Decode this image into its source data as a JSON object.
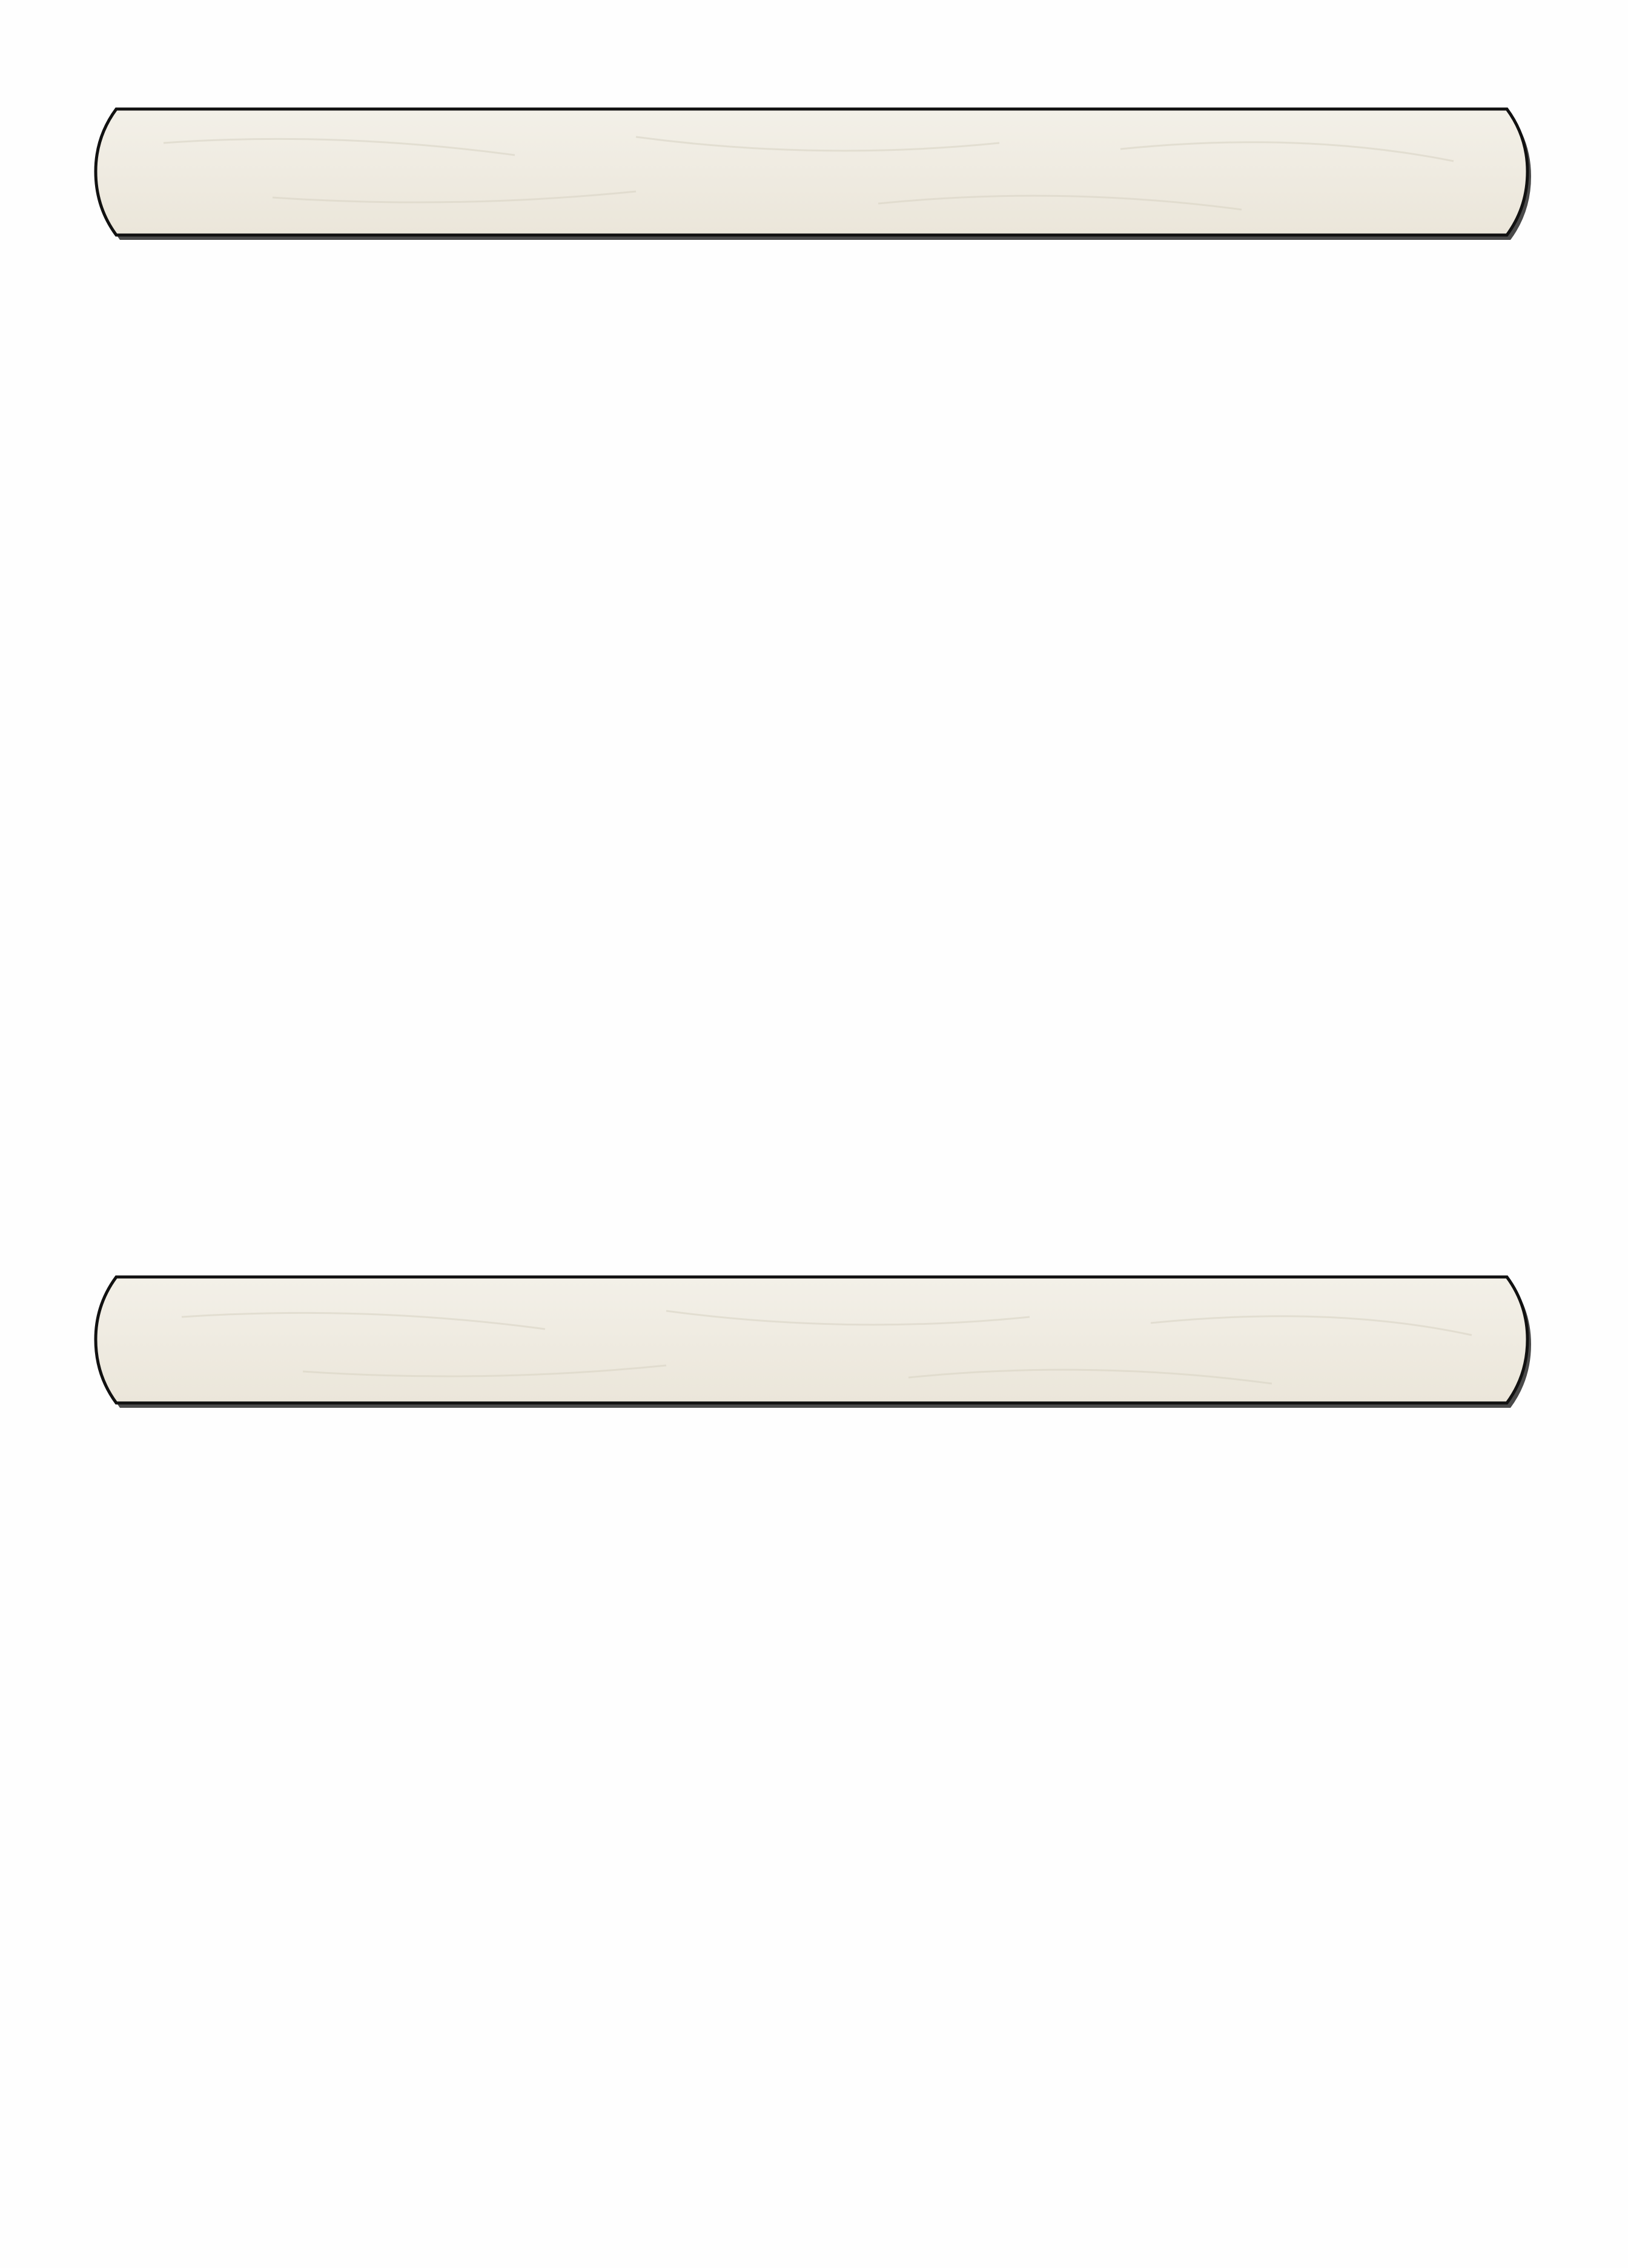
{
  "colors": {
    "page_background": "#fefefe",
    "banner_fill": "#f1ede3",
    "banner_outline": "#111111",
    "banner_shadow": "#4a4a4a"
  },
  "banners": [
    {
      "id": "top",
      "label": ""
    },
    {
      "id": "bottom",
      "label": ""
    }
  ]
}
